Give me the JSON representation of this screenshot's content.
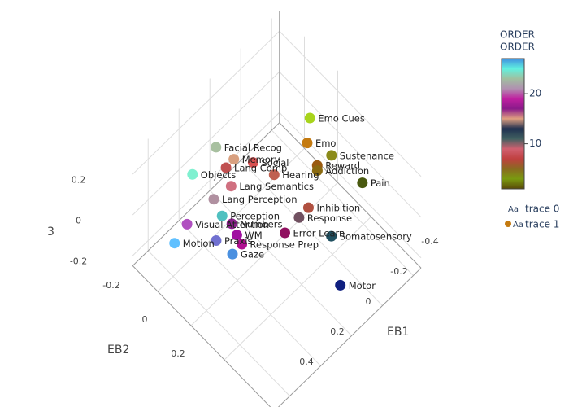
{
  "chart_data": {
    "type": "scatter3d",
    "x_label": "EB1",
    "y_label": "EB2",
    "z_label": "3",
    "xlim": [
      -0.45,
      0.5
    ],
    "ylim": [
      -0.35,
      0.5
    ],
    "zlim": [
      -0.25,
      0.3
    ],
    "xticks": [
      -0.4,
      -0.2,
      0,
      0.2,
      0.4
    ],
    "yticks": [
      -0.2,
      0,
      0.2
    ],
    "zticks": [
      -0.2,
      0,
      0.2
    ],
    "grid": true,
    "labels": [
      "Emo Cues",
      "Emo",
      "Sustenance",
      "Reward",
      "Addiction",
      "Pain",
      "Facial Recog",
      "Memory",
      "Social",
      "Lang Comp",
      "Hearing",
      "Objects",
      "Lang Semantics",
      "Lang Perception",
      "Inhibition",
      "Response",
      "Perception",
      "Numbers",
      "Visual Attention",
      "Error Learn",
      "Somatosensory",
      "WM",
      "Motion",
      "Praxis",
      "Response Prep",
      "Gaze",
      "Motor"
    ],
    "x": [
      -0.27,
      -0.22,
      -0.28,
      -0.22,
      -0.21,
      -0.34,
      0.09,
      0.05,
      -0.01,
      0.09,
      -0.06,
      0.21,
      0.1,
      0.18,
      -0.12,
      -0.07,
      0.18,
      0.16,
      0.31,
      0.0,
      -0.15,
      0.16,
      0.38,
      0.24,
      0.16,
      0.21,
      -0.1
    ],
    "y": [
      0.0,
      0.03,
      0.12,
      0.09,
      0.1,
      0.25,
      -0.23,
      -0.16,
      -0.1,
      -0.17,
      -0.02,
      -0.26,
      -0.13,
      -0.16,
      0.13,
      0.12,
      -0.11,
      -0.07,
      -0.2,
      0.1,
      0.24,
      -0.04,
      -0.21,
      -0.09,
      -0.01,
      -0.02,
      0.34
    ],
    "z": [
      0.2,
      0.14,
      0.11,
      0.08,
      0.07,
      0.04,
      0.13,
      0.1,
      0.09,
      0.08,
      0.06,
      0.06,
      0.03,
      0.0,
      -0.02,
      -0.04,
      -0.04,
      -0.06,
      -0.06,
      -0.08,
      -0.09,
      -0.09,
      -0.11,
      -0.1,
      -0.11,
      -0.13,
      -0.21
    ],
    "colors": [
      "#a8d41c",
      "#c47a10",
      "#8a8a1a",
      "#9a5a10",
      "#8a6a10",
      "#4a5a10",
      "#a8c0a0",
      "#d8a080",
      "#d85050",
      "#c05050",
      "#c06050",
      "#80f0d0",
      "#d07080",
      "#b090a0",
      "#b05040",
      "#705060",
      "#50c0c0",
      "#8a208a",
      "#b050c0",
      "#901060",
      "#205060",
      "#a010a0",
      "#60c0ff",
      "#7070d0",
      "#b01090",
      "#4a90e0",
      "#102080"
    ],
    "series": [
      {
        "name": "trace 0",
        "symbol": "Aa"
      },
      {
        "name": "trace 1",
        "symbol": "Aa",
        "color": "#c47a10"
      }
    ],
    "colorbar": {
      "title_lines": [
        "ORDER",
        "ORDER"
      ],
      "range": [
        1,
        27
      ],
      "ticks": [
        10,
        20
      ],
      "colorscale": [
        "#5a4a08",
        "#7a9a10",
        "#8a6a20",
        "#c04040",
        "#d06070",
        "#406060",
        "#203050",
        "#e0a080",
        "#8a1a8a",
        "#c020a0",
        "#b090b0",
        "#a0c0a0",
        "#60f0e0",
        "#4090e0"
      ]
    }
  }
}
